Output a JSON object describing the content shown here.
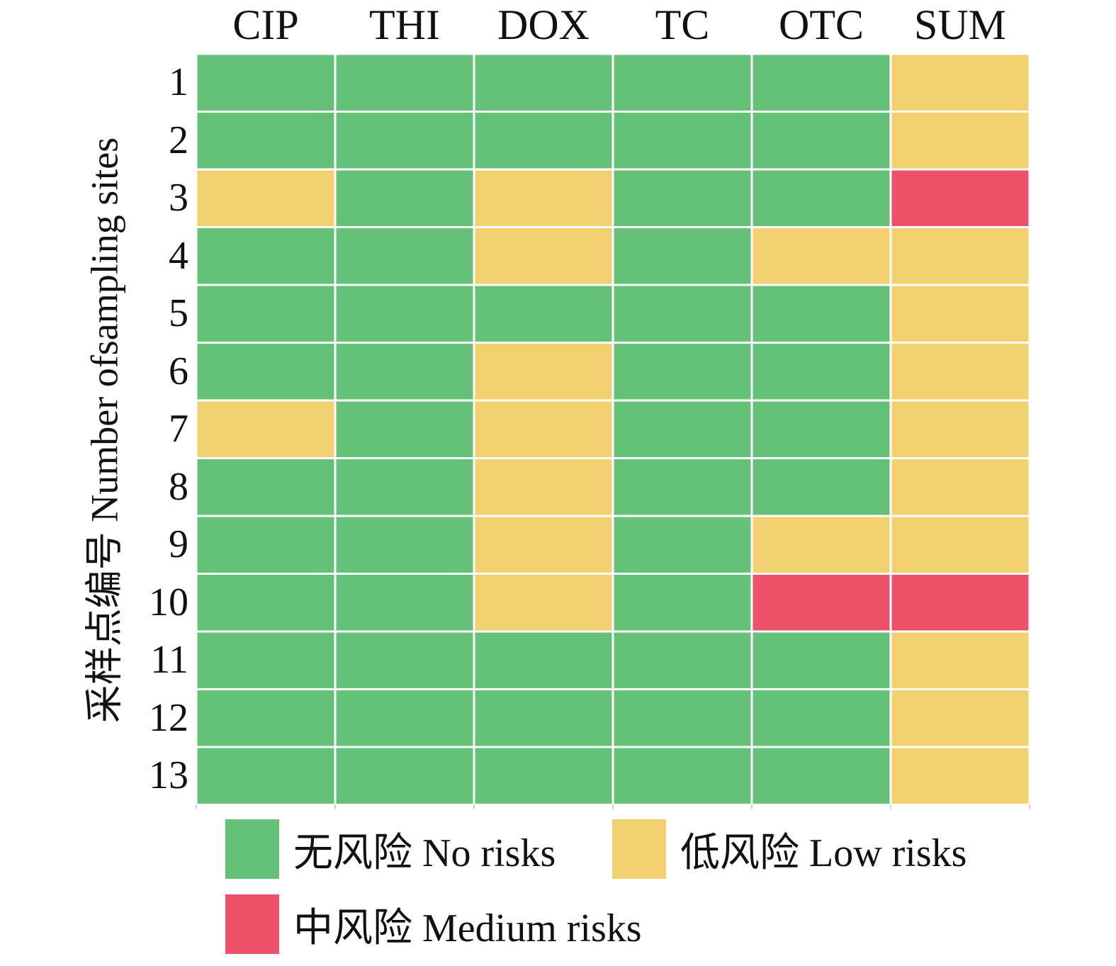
{
  "chart_data": {
    "type": "heatmap",
    "title": "",
    "xlabel": "",
    "ylabel": "采样点编号 Number ofsampling sites",
    "columns": [
      "CIP",
      "THI",
      "DOX",
      "TC",
      "OTC",
      "SUM"
    ],
    "rows": [
      "1",
      "2",
      "3",
      "4",
      "5",
      "6",
      "7",
      "8",
      "9",
      "10",
      "11",
      "12",
      "13"
    ],
    "risk_levels": [
      {
        "key": "none",
        "label": "无风险 No risks",
        "color": "#65c178"
      },
      {
        "key": "low",
        "label": "低风险 Low risks",
        "color": "#f2d070"
      },
      {
        "key": "medium",
        "label": "中风险 Medium risks",
        "color": "#ee516a"
      }
    ],
    "values": [
      [
        "none",
        "none",
        "none",
        "none",
        "none",
        "low"
      ],
      [
        "none",
        "none",
        "none",
        "none",
        "none",
        "low"
      ],
      [
        "low",
        "none",
        "low",
        "none",
        "none",
        "medium"
      ],
      [
        "none",
        "none",
        "low",
        "none",
        "low",
        "low"
      ],
      [
        "none",
        "none",
        "none",
        "none",
        "none",
        "low"
      ],
      [
        "none",
        "none",
        "low",
        "none",
        "none",
        "low"
      ],
      [
        "low",
        "none",
        "low",
        "none",
        "none",
        "low"
      ],
      [
        "none",
        "none",
        "low",
        "none",
        "none",
        "low"
      ],
      [
        "none",
        "none",
        "low",
        "none",
        "low",
        "low"
      ],
      [
        "none",
        "none",
        "low",
        "none",
        "medium",
        "medium"
      ],
      [
        "none",
        "none",
        "none",
        "none",
        "none",
        "low"
      ],
      [
        "none",
        "none",
        "none",
        "none",
        "none",
        "low"
      ],
      [
        "none",
        "none",
        "none",
        "none",
        "none",
        "low"
      ]
    ],
    "grid": true,
    "legend_position": "bottom"
  },
  "colors": {
    "grid_line": "#ffffff",
    "tick": "#cccccc"
  }
}
